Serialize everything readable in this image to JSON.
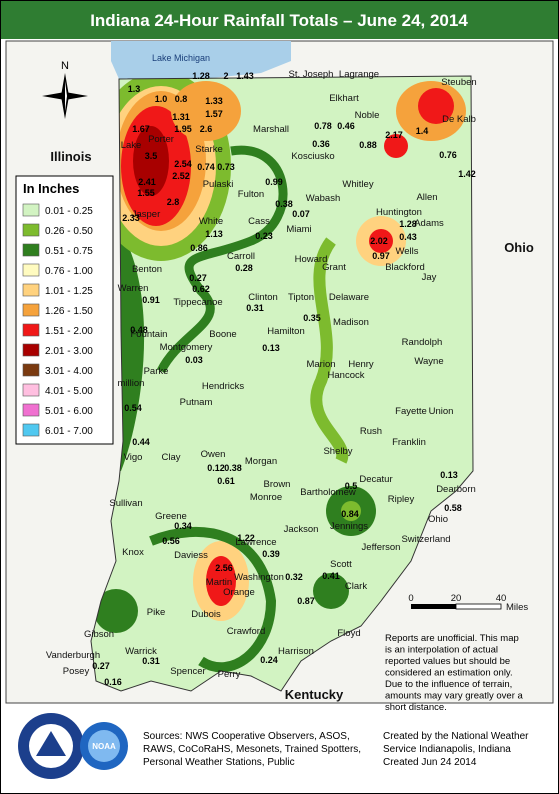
{
  "title": "Indiana 24-Hour Rainfall Totals – June 24, 2014",
  "compass": "N",
  "logo": "NOAA",
  "legend": {
    "title": "In Inches",
    "items": [
      {
        "label": "0.01 - 0.25",
        "color": "#d2f3c2"
      },
      {
        "label": "0.26 - 0.50",
        "color": "#7dbb2e"
      },
      {
        "label": "0.51 - 0.75",
        "color": "#2f7f1f"
      },
      {
        "label": "0.76 - 1.00",
        "color": "#fffbc0"
      },
      {
        "label": "1.01 - 1.25",
        "color": "#ffd27f"
      },
      {
        "label": "1.26 - 1.50",
        "color": "#f5a23c"
      },
      {
        "label": "1.51 - 2.00",
        "color": "#f01818"
      },
      {
        "label": "2.01 - 3.00",
        "color": "#a80000"
      },
      {
        "label": "3.01 - 4.00",
        "color": "#7a3a10"
      },
      {
        "label": "4.01 - 5.00",
        "color": "#ffbfe0"
      },
      {
        "label": "5.01 - 6.00",
        "color": "#f070d0"
      },
      {
        "label": "6.01 - 7.00",
        "color": "#50c8f0"
      }
    ]
  },
  "map": {
    "water_label": "Lake Michigan",
    "states": [
      "Illinois",
      "Ohio",
      "Kentucky"
    ],
    "counties": [
      "Lake",
      "Porter",
      "St. Joseph",
      "Lagrange",
      "Steuben",
      "Elkhart",
      "Noble",
      "De Kalb",
      "Marshall",
      "Kosciusko",
      "Starke",
      "Pulaski",
      "Fulton",
      "Whitley",
      "Allen",
      "Jasper",
      "White",
      "Cass",
      "Miami",
      "Wabash",
      "Huntington",
      "Wells",
      "Adams",
      "Benton",
      "Carroll",
      "Howard",
      "Grant",
      "Blackford",
      "Jay",
      "Warren",
      "Tippecanoe",
      "Clinton",
      "Tipton",
      "Delaware",
      "Randolph",
      "Fountain",
      "Montgomery",
      "Boone",
      "Hamilton",
      "Madison",
      "Henry",
      "Wayne",
      "Parke",
      "Marion",
      "Hancock",
      "Hendricks",
      "million",
      "Putnam",
      "Vigo",
      "Clay",
      "Morgan",
      "Shelby",
      "Rush",
      "Fayette",
      "Union",
      "Franklin",
      "Owen",
      "Decatur",
      "Brown",
      "Monroe",
      "Bartholomew",
      "Ripley",
      "Dearborn",
      "Sullivan",
      "Greene",
      "Ohio",
      "Jennings",
      "Switzerland",
      "Jackson",
      "Lawrence",
      "Knox",
      "Daviess",
      "Martin",
      "Jefferson",
      "Scott",
      "Washington",
      "Orange",
      "Clark",
      "Pike",
      "Dubois",
      "Floyd",
      "Gibson",
      "Crawford",
      "Harrison",
      "Vanderburgh",
      "Posey",
      "Warrick",
      "Spencer",
      "Perry"
    ],
    "rainfall_values": [
      "1.28",
      "2",
      "1.43",
      "1.3",
      "1.0",
      "0.8",
      "1.33",
      "1.57",
      "1.31",
      "1.67",
      "1.95",
      "2.6",
      "3.5",
      "2.54",
      "2.52",
      "2.41",
      "2.8",
      "1.55",
      "2.33",
      "0.74",
      "0.73",
      "0.99",
      "0.38",
      "0.07",
      "0.23",
      "0.36",
      "0.78",
      "0.46",
      "0.88",
      "2.17",
      "1.4",
      "0.76",
      "1.42",
      "1.28",
      "2.02",
      "0.97",
      "0.43",
      "1.13",
      "0.86",
      "0.27",
      "0.62",
      "0.28",
      "0.31",
      "0.48",
      "0.91",
      "0.35",
      "0.13",
      "0.03",
      "0.56",
      "0.54",
      "0.44",
      "0.12",
      "0.38",
      "0.61",
      "0.5",
      "0.84",
      "0.34",
      "1.22",
      "2.56",
      "0.39",
      "0.32",
      "0.41",
      "0.87",
      "0.24",
      "0.27",
      "0.16",
      "0.31",
      "0.13",
      "0.58"
    ]
  },
  "scale": {
    "ticks": [
      "0",
      "20",
      "40"
    ],
    "unit": "Miles"
  },
  "note": [
    "Reports are unofficial. This map",
    "is an interpolation of actual",
    "reported values but should be",
    "considered an estimation only.",
    "Due to the influence of terrain,",
    "amounts may vary greatly over a",
    "short distance."
  ],
  "sources": [
    "Sources: NWS Cooperative Observers, ASOS,",
    "RAWS, CoCoRaHS, Mesonets, Trained Spotters,",
    "Personal Weather Stations, Public"
  ],
  "credit": [
    "Created by the National Weather",
    "Service Indianapolis, Indiana",
    "Created Jun 24 2014"
  ]
}
